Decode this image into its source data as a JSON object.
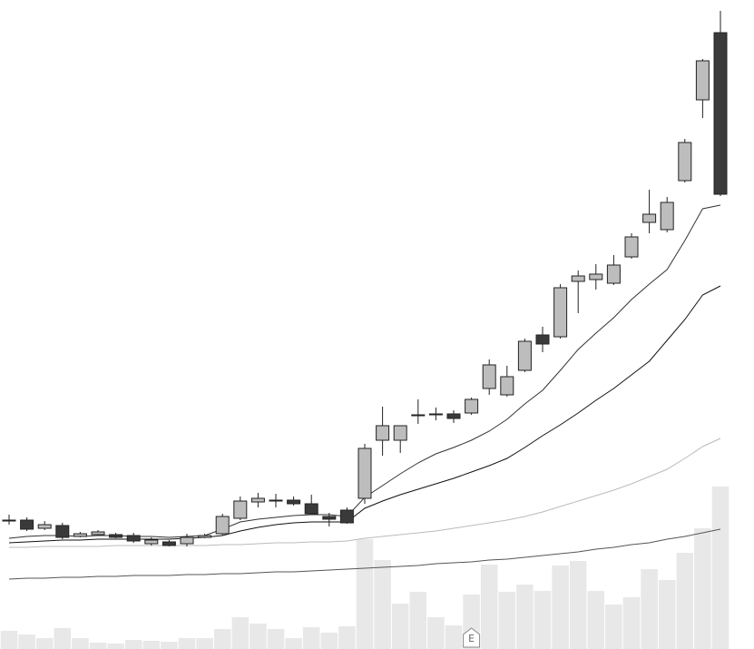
{
  "chart_data": {
    "type": "candlestick",
    "ylim": [
      0,
      715
    ],
    "y2lim": [
      0,
      715
    ],
    "up_color": "#bdbdbd",
    "down_color": "#3a3a3a",
    "volume_color": "#e8e8e8",
    "candles": {
      "open": [
        142,
        142,
        133,
        136,
        124,
        126,
        126,
        125,
        116,
        118,
        116,
        123,
        127,
        144,
        162,
        164,
        164,
        160,
        146,
        153,
        166,
        230,
        230,
        258,
        259,
        259,
        260,
        287,
        280,
        307,
        346,
        344,
        405,
        407,
        403,
        432,
        470,
        462,
        516,
        605,
        679
      ],
      "high": [
        148,
        145,
        141,
        139,
        129,
        131,
        128,
        128,
        123,
        120,
        127,
        127,
        149,
        168,
        172,
        171,
        168,
        170,
        150,
        156,
        226,
        267,
        246,
        275,
        266,
        263,
        277,
        319,
        312,
        342,
        355,
        402,
        417,
        424,
        434,
        458,
        506,
        498,
        562,
        650,
        703
      ],
      "low": [
        137,
        130,
        131,
        121,
        123,
        125,
        122,
        117,
        114,
        113,
        113,
        122,
        125,
        142,
        156,
        156,
        158,
        149,
        135,
        138,
        160,
        213,
        216,
        248,
        252,
        249,
        258,
        280,
        278,
        305,
        327,
        342,
        370,
        396,
        401,
        430,
        458,
        459,
        514,
        585,
        499
      ],
      "close": [
        142,
        132,
        137,
        123,
        127,
        129,
        123,
        119,
        120,
        114,
        123,
        125,
        146,
        163,
        166,
        164,
        160,
        149,
        143,
        139,
        221,
        246,
        246,
        258,
        259,
        254,
        275,
        313,
        300,
        339,
        336,
        398,
        411,
        413,
        423,
        454,
        479,
        492,
        558,
        648,
        501
      ]
    },
    "volume": [
      20,
      16,
      12,
      23,
      12,
      7,
      6,
      10,
      9,
      8,
      12,
      12,
      22,
      35,
      28,
      22,
      12,
      24,
      18,
      25,
      121,
      98,
      50,
      63,
      35,
      26,
      60,
      93,
      63,
      71,
      64,
      92,
      97,
      64,
      49,
      57,
      88,
      76,
      106,
      133,
      179
    ],
    "moving_averages": [
      {
        "color": "#333333",
        "values": [
          122,
          124,
          125,
          125,
          124,
          125,
          125,
          124,
          124,
          123,
          124,
          125,
          132,
          140,
          143,
          145,
          147,
          148,
          148,
          146,
          167,
          180,
          193,
          205,
          215,
          222,
          230,
          240,
          253,
          270,
          285,
          307,
          330,
          348,
          365,
          385,
          402,
          418,
          450,
          485,
          489
        ]
      },
      {
        "color": "#111111",
        "values": [
          117,
          118,
          119,
          120,
          120,
          121,
          121,
          121,
          121,
          121,
          122,
          123,
          125,
          130,
          134,
          137,
          139,
          140,
          140,
          140,
          155,
          163,
          170,
          176,
          182,
          188,
          195,
          202,
          210,
          222,
          235,
          247,
          260,
          274,
          287,
          302,
          317,
          340,
          363,
          390,
          400
        ]
      },
      {
        "color": "#bbbbbb",
        "values": [
          112,
          112,
          113,
          113,
          113,
          113,
          114,
          114,
          114,
          114,
          114,
          114,
          115,
          115,
          116,
          117,
          117,
          118,
          118,
          119,
          122,
          124,
          126,
          128,
          130,
          133,
          136,
          139,
          142,
          146,
          151,
          157,
          163,
          169,
          175,
          182,
          190,
          198,
          210,
          223,
          232
        ]
      },
      {
        "color": "#555555",
        "values": [
          77,
          78,
          78,
          79,
          79,
          80,
          80,
          81,
          81,
          81,
          82,
          82,
          83,
          83,
          84,
          85,
          85,
          86,
          87,
          88,
          89,
          90,
          91,
          92,
          94,
          95,
          96,
          98,
          99,
          101,
          103,
          105,
          107,
          110,
          112,
          115,
          117,
          121,
          124,
          128,
          132
        ]
      }
    ],
    "annotations": [
      {
        "text": "E"
      }
    ]
  }
}
